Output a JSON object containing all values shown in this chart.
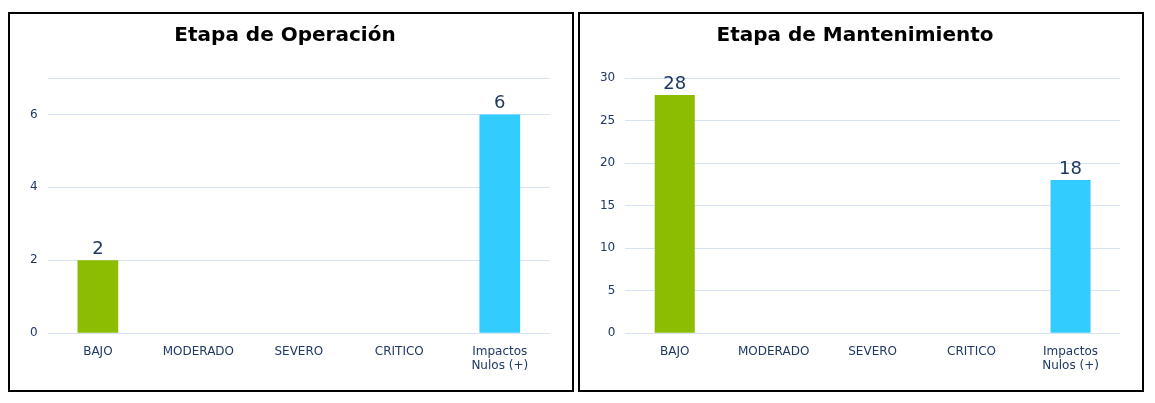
{
  "chart_data": [
    {
      "type": "bar",
      "title": "Etapa de Operación",
      "categories": [
        "BAJO",
        "MODERADO",
        "SEVERO",
        "CRITICO",
        "Impactos Nulos (+)"
      ],
      "values": [
        2,
        null,
        null,
        null,
        6
      ],
      "colors": [
        "#8dbd00",
        "#8dbd00",
        "#8dbd00",
        "#8dbd00",
        "#33ccff"
      ],
      "ylim": [
        0,
        7
      ],
      "yticks": [
        0,
        2,
        4,
        6,
        {
          "value": 7,
          "label": null
        }
      ],
      "grid": "y",
      "data_labels": true
    },
    {
      "type": "bar",
      "title": "Etapa de Mantenimiento",
      "categories": [
        "BAJO",
        "MODERADO",
        "SEVERO",
        "CRITICO",
        "Impactos Nulos (+)"
      ],
      "values": [
        28,
        null,
        null,
        null,
        18
      ],
      "colors": [
        "#8dbd00",
        "#8dbd00",
        "#8dbd00",
        "#8dbd00",
        "#33ccff"
      ],
      "ylim": [
        0,
        30
      ],
      "yticks": [
        0,
        5,
        10,
        15,
        20,
        25,
        30
      ],
      "grid": "y",
      "data_labels": true
    }
  ]
}
